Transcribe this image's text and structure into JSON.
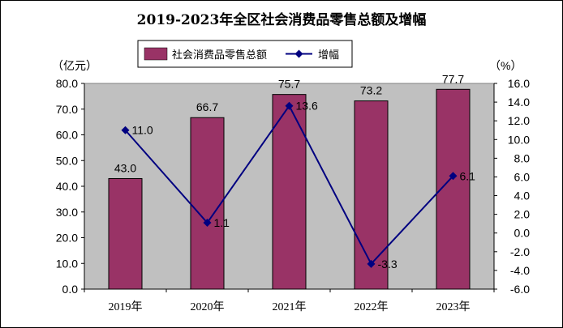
{
  "chart_data": {
    "type": "bar",
    "title": "2019-2023年全区社会消费品零售总额及增幅",
    "categories": [
      "2019年",
      "2020年",
      "2021年",
      "2022年",
      "2023年"
    ],
    "series": [
      {
        "name": "社会消费品零售总额",
        "kind": "bar",
        "axis": "left",
        "values": [
          43.0,
          66.7,
          75.7,
          73.2,
          77.7
        ],
        "labels": [
          "43.0",
          "66.7",
          "75.7",
          "73.2",
          "77.7"
        ],
        "color": "#993366"
      },
      {
        "name": "增幅",
        "kind": "line",
        "axis": "right",
        "values": [
          11.0,
          1.1,
          13.6,
          -3.3,
          6.1
        ],
        "labels": [
          "11.0",
          "1.1",
          "13.6",
          "-3.3",
          "6.1"
        ],
        "color": "#000080"
      }
    ],
    "left_axis": {
      "unit": "（亿元）",
      "ylim": [
        0,
        80
      ],
      "ticks": [
        "0.0",
        "10.0",
        "20.0",
        "30.0",
        "40.0",
        "50.0",
        "60.0",
        "70.0",
        "80.0"
      ]
    },
    "right_axis": {
      "unit": "（%）",
      "ylim": [
        -6,
        16
      ],
      "ticks": [
        "-6.0",
        "-4.0",
        "-2.0",
        "0.0",
        "2.0",
        "4.0",
        "6.0",
        "8.0",
        "10.0",
        "12.0",
        "14.0",
        "16.0"
      ]
    },
    "plot_background": "#c0c0c0",
    "grid": false,
    "legend_position": "top-center"
  }
}
